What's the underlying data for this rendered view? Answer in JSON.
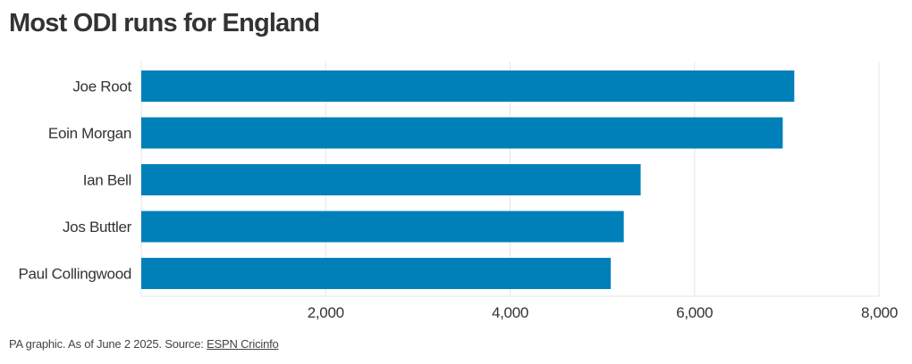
{
  "title": "Most ODI runs for England",
  "footer": {
    "text": "PA graphic. As of June 2 2025. Source: ",
    "source_link": "ESPN Cricinfo"
  },
  "colors": {
    "bar": "#0080b8",
    "grid": "#e6e6e6",
    "label": "#333333"
  },
  "chart_data": {
    "type": "bar",
    "orientation": "horizontal",
    "categories": [
      "Joe Root",
      "Eoin Morgan",
      "Ian Bell",
      "Jos Buttler",
      "Paul Collingwood"
    ],
    "values": [
      7082,
      6957,
      5416,
      5233,
      5092
    ],
    "xlim": [
      0,
      8000
    ],
    "xticks": [
      2000,
      4000,
      6000,
      8000
    ],
    "xtick_labels": [
      "2,000",
      "4,000",
      "6,000",
      "8,000"
    ],
    "grid": true
  }
}
